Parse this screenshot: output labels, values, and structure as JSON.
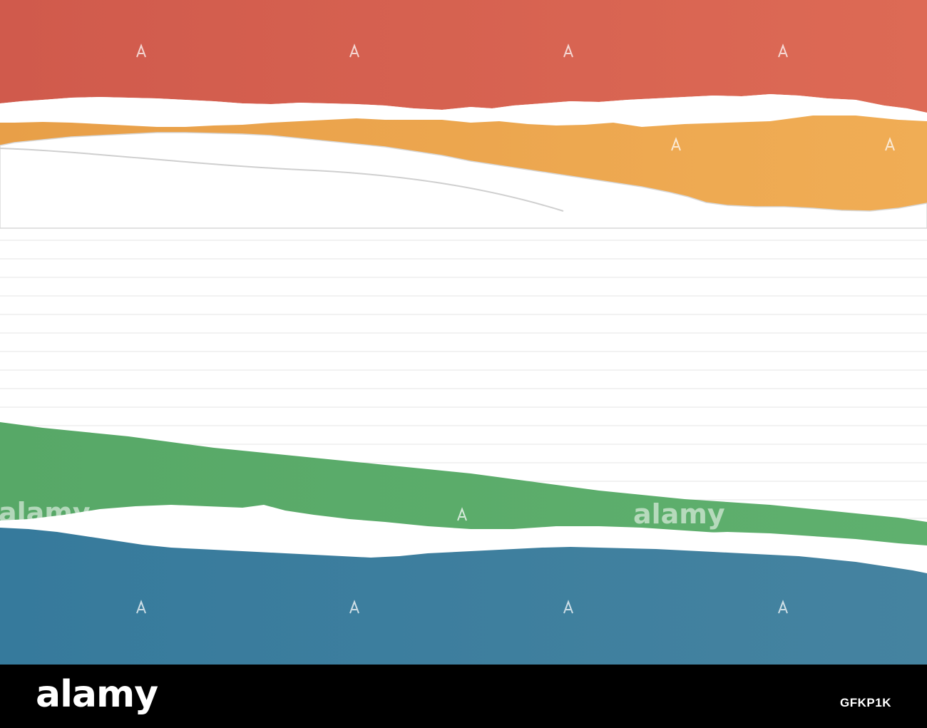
{
  "image": {
    "subject": "torn-paper-strips-on-lined-paper",
    "strip_colors": {
      "red": "#d4604f",
      "orange": "#eea951",
      "green": "#5aab6a",
      "blue": "#3a7d9d",
      "paper": "#ffffff",
      "ruled_line": "#e8e8e8"
    }
  },
  "watermark": {
    "logo_text": "alamy",
    "icon": "alamy-a-icon"
  },
  "footer": {
    "logo": "alamy",
    "image_code": "GFKP1K",
    "background": "#000000"
  }
}
